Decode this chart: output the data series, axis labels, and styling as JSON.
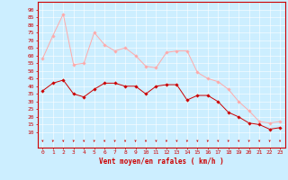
{
  "x": [
    0,
    1,
    2,
    3,
    4,
    5,
    6,
    7,
    8,
    9,
    10,
    11,
    12,
    13,
    14,
    15,
    16,
    17,
    18,
    19,
    20,
    21,
    22,
    23
  ],
  "wind_avg": [
    37,
    42,
    44,
    35,
    33,
    38,
    42,
    42,
    40,
    40,
    35,
    40,
    41,
    41,
    31,
    34,
    34,
    30,
    23,
    20,
    16,
    15,
    12,
    13
  ],
  "wind_gust": [
    58,
    73,
    87,
    54,
    55,
    75,
    67,
    63,
    65,
    60,
    53,
    52,
    62,
    63,
    63,
    49,
    45,
    43,
    38,
    30,
    24,
    17,
    16,
    17
  ],
  "avg_color": "#cc0000",
  "gust_color": "#ffaaaa",
  "bg_color": "#cceeff",
  "grid_color": "#ffffff",
  "xlabel": "Vent moyen/en rafales ( km/h )",
  "ylim": [
    0,
    95
  ],
  "yticks": [
    10,
    15,
    20,
    25,
    30,
    35,
    40,
    45,
    50,
    55,
    60,
    65,
    70,
    75,
    80,
    85,
    90
  ],
  "xticks": [
    0,
    1,
    2,
    3,
    4,
    5,
    6,
    7,
    8,
    9,
    10,
    11,
    12,
    13,
    14,
    15,
    16,
    17,
    18,
    19,
    20,
    21,
    22,
    23
  ],
  "tick_fontsize": 4.5,
  "xlabel_fontsize": 5.5
}
